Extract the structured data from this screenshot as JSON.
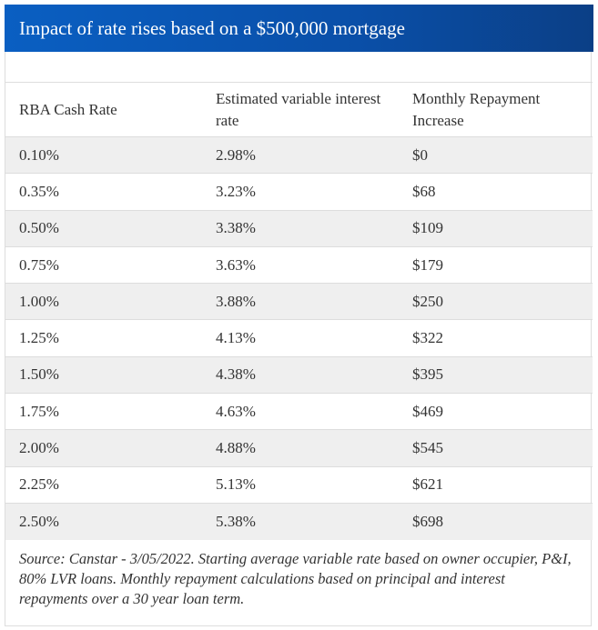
{
  "title": "Impact of rate rises based on a $500,000 mortgage",
  "columns": [
    "RBA Cash Rate",
    "Estimated variable interest rate",
    "Monthly Repayment Increase"
  ],
  "rows": [
    [
      "0.10%",
      "2.98%",
      "$0"
    ],
    [
      "0.35%",
      "3.23%",
      "$68"
    ],
    [
      "0.50%",
      "3.38%",
      "$109"
    ],
    [
      "0.75%",
      "3.63%",
      "$179"
    ],
    [
      "1.00%",
      "3.88%",
      "$250"
    ],
    [
      "1.25%",
      "4.13%",
      "$322"
    ],
    [
      "1.50%",
      "4.38%",
      "$395"
    ],
    [
      "1.75%",
      "4.63%",
      "$469"
    ],
    [
      "2.00%",
      "4.88%",
      "$545"
    ],
    [
      "2.25%",
      "5.13%",
      "$621"
    ],
    [
      "2.50%",
      "5.38%",
      "$698"
    ]
  ],
  "footnote": "Source: Canstar - 3/05/2022. Starting average variable rate based on owner occupier, P&I, 80% LVR loans. Monthly repayment calculations based on principal and interest repayments over a 30 year loan term.",
  "colors": {
    "header_bg": "#0a55b5",
    "stripe": "#efefef"
  }
}
